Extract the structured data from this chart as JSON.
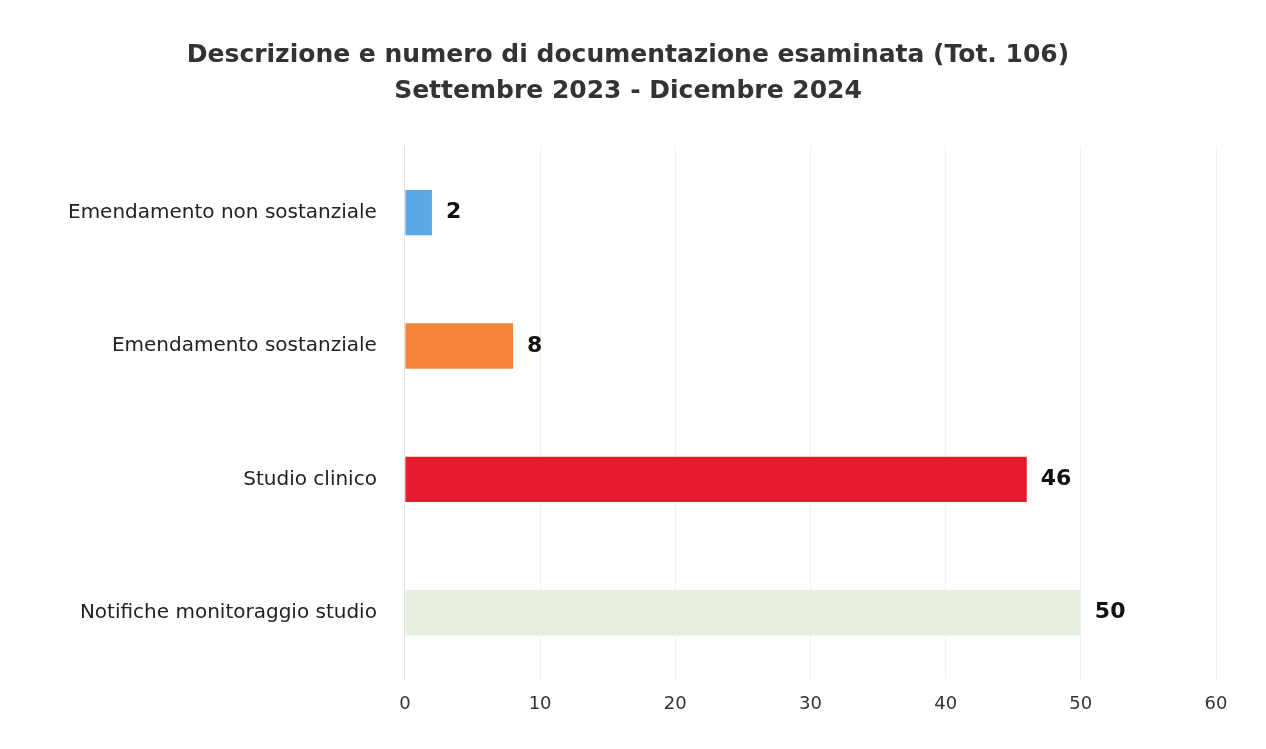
{
  "chart_data": {
    "type": "bar",
    "orientation": "horizontal",
    "title": "Descrizione e numero di documentazione esaminata (Tot. 106)",
    "subtitle": "Settembre 2023 - Dicembre 2024",
    "categories": [
      "Emendamento non sostanziale",
      "Emendamento sostanziale",
      "Studio clinico",
      "Notifiche monitoraggio studio"
    ],
    "values": [
      2,
      8,
      46,
      50
    ],
    "colors": [
      "#5aa9e6",
      "#f4853a",
      "#e8192c",
      "#e6eedf"
    ],
    "xlim": [
      0,
      60
    ],
    "xticks": [
      0,
      10,
      20,
      30,
      40,
      50,
      60
    ],
    "grid": "x",
    "data_labels": true,
    "legend": false
  }
}
